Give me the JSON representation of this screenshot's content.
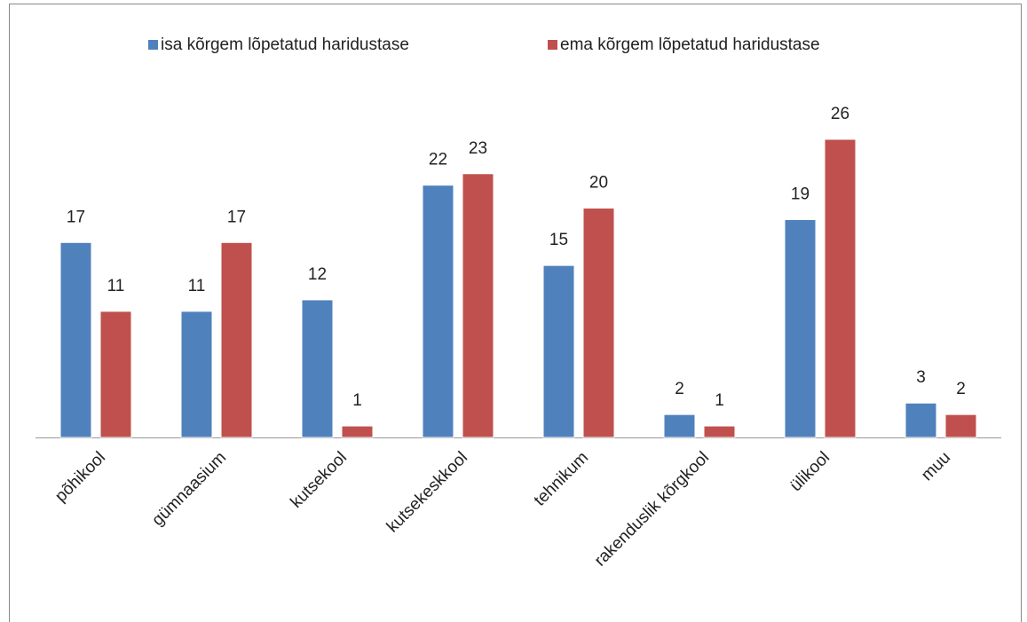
{
  "chart_data": {
    "type": "bar",
    "categories": [
      "põhikool",
      "gümnaasium",
      "kutsekool",
      "kutsekeskkool",
      "tehnikum",
      "rakenduslik kõrgkool",
      "ülikool",
      "muu"
    ],
    "series": [
      {
        "name": "isa kõrgem lõpetatud haridustase",
        "color": "#4f81bd",
        "values": [
          17,
          11,
          12,
          22,
          15,
          2,
          19,
          3
        ]
      },
      {
        "name": "ema kõrgem lõpetatud haridustase",
        "color": "#c0504d",
        "values": [
          11,
          17,
          1,
          23,
          20,
          1,
          26,
          2
        ]
      }
    ],
    "legend": "top"
  }
}
